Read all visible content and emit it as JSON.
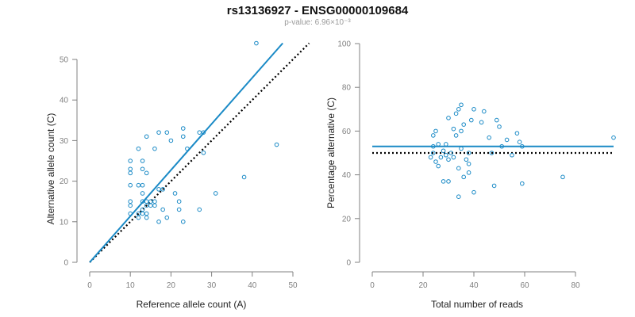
{
  "title": "rs13136927 - ENSG00000109684",
  "subtitle": "p-value: 6.96×10⁻³",
  "colors": {
    "points": "#1a8ac6",
    "fit_line": "#1a8ac6",
    "reference_line": "#000000",
    "axis": "#808080"
  },
  "chart_data": [
    {
      "type": "scatter",
      "xlabel": "Reference allele count (A)",
      "ylabel": "Alternative allele count (C)",
      "xlim": [
        0,
        50
      ],
      "ylim": [
        0,
        50
      ],
      "xticks": [
        "0",
        "10",
        "20",
        "30",
        "40",
        "50"
      ],
      "yticks": [
        "0",
        "10",
        "20",
        "30",
        "40",
        "50"
      ],
      "grid": false,
      "points": [
        [
          10,
          22
        ],
        [
          10,
          23
        ],
        [
          10,
          19
        ],
        [
          10,
          15
        ],
        [
          10,
          14
        ],
        [
          10,
          25
        ],
        [
          10,
          12
        ],
        [
          12,
          28
        ],
        [
          12,
          19
        ],
        [
          12,
          12
        ],
        [
          12,
          11
        ],
        [
          13,
          25
        ],
        [
          13,
          23
        ],
        [
          13,
          19
        ],
        [
          13,
          17
        ],
        [
          13,
          15
        ],
        [
          13,
          13
        ],
        [
          13,
          12
        ],
        [
          14,
          31
        ],
        [
          14,
          22
        ],
        [
          14,
          15
        ],
        [
          14,
          14
        ],
        [
          14,
          12
        ],
        [
          14,
          11
        ],
        [
          15,
          15
        ],
        [
          15,
          14
        ],
        [
          16,
          28
        ],
        [
          16,
          15
        ],
        [
          16,
          14
        ],
        [
          17,
          32
        ],
        [
          17,
          18
        ],
        [
          17,
          10
        ],
        [
          18,
          18
        ],
        [
          18,
          13
        ],
        [
          19,
          32
        ],
        [
          19,
          11
        ],
        [
          20,
          30
        ],
        [
          21,
          17
        ],
        [
          22,
          15
        ],
        [
          22,
          13
        ],
        [
          23,
          33
        ],
        [
          23,
          31
        ],
        [
          23,
          10
        ],
        [
          24,
          28
        ],
        [
          27,
          32
        ],
        [
          27,
          13
        ],
        [
          28,
          32
        ],
        [
          28,
          27
        ],
        [
          31,
          17
        ],
        [
          38,
          21
        ],
        [
          41,
          54
        ],
        [
          46,
          29
        ]
      ],
      "fit_line": [
        [
          0,
          0
        ],
        [
          47.5,
          54
        ]
      ],
      "reference_line": [
        [
          0,
          0
        ],
        [
          54,
          54
        ]
      ]
    },
    {
      "type": "scatter",
      "xlabel": "Total number of reads",
      "ylabel": "Percentage alternative (C)",
      "xlim": [
        0,
        95
      ],
      "ylim": [
        0,
        100
      ],
      "xticks": [
        "0",
        "20",
        "40",
        "60",
        "80"
      ],
      "yticks": [
        "0",
        "20",
        "40",
        "60",
        "80",
        "100"
      ],
      "grid": false,
      "points": [
        [
          23,
          48
        ],
        [
          24,
          53
        ],
        [
          24,
          50
        ],
        [
          24,
          58
        ],
        [
          25,
          60
        ],
        [
          25,
          46
        ],
        [
          26,
          44
        ],
        [
          26,
          54
        ],
        [
          27,
          48
        ],
        [
          28,
          37
        ],
        [
          28,
          51
        ],
        [
          29,
          49
        ],
        [
          29,
          54
        ],
        [
          30,
          66
        ],
        [
          30,
          47
        ],
        [
          30,
          37
        ],
        [
          31,
          50
        ],
        [
          32,
          61
        ],
        [
          32,
          48
        ],
        [
          33,
          68
        ],
        [
          33,
          58
        ],
        [
          34,
          70
        ],
        [
          34,
          43
        ],
        [
          34,
          30
        ],
        [
          35,
          60
        ],
        [
          35,
          72
        ],
        [
          35,
          52
        ],
        [
          36,
          63
        ],
        [
          36,
          39
        ],
        [
          37,
          47
        ],
        [
          38,
          50
        ],
        [
          38,
          45
        ],
        [
          38,
          41
        ],
        [
          39,
          65
        ],
        [
          40,
          32
        ],
        [
          40,
          70
        ],
        [
          43,
          64
        ],
        [
          44,
          69
        ],
        [
          46,
          57
        ],
        [
          47,
          50
        ],
        [
          48,
          35
        ],
        [
          49,
          65
        ],
        [
          50,
          62
        ],
        [
          51,
          53
        ],
        [
          53,
          56
        ],
        [
          55,
          49
        ],
        [
          57,
          59
        ],
        [
          58,
          55
        ],
        [
          59,
          36
        ],
        [
          59,
          53
        ],
        [
          75,
          39
        ],
        [
          95,
          57
        ]
      ],
      "fit_line": [
        [
          0,
          53
        ],
        [
          95,
          53
        ]
      ],
      "reference_line": [
        [
          0,
          50
        ],
        [
          95,
          50
        ]
      ]
    }
  ]
}
